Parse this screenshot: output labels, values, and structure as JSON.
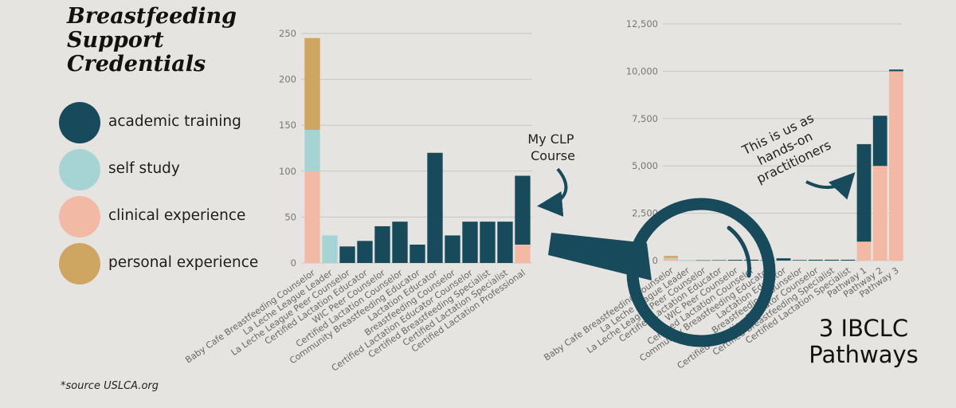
{
  "title_lines": [
    "Breastfeeding",
    "Support",
    "Credentials"
  ],
  "legend": [
    {
      "label": "academic training",
      "color": "#174b5c"
    },
    {
      "label": "self study",
      "color": "#a6d3d4"
    },
    {
      "label": "clinical experience",
      "color": "#f2b9a5"
    },
    {
      "label": "personal experience",
      "color": "#cfa562"
    }
  ],
  "source_note": "*source USLCA.org",
  "annotations": {
    "clp_lines": [
      "My CLP",
      "Course"
    ],
    "practitioners_lines": [
      "This is us as",
      "hands-on",
      "practitioners"
    ],
    "pathways_lines": [
      "3 IBCLC",
      "Pathways"
    ]
  },
  "chart_data": [
    {
      "type": "bar",
      "stacked": true,
      "title": "",
      "xlabel": "",
      "ylabel": "",
      "ylim": [
        0,
        250
      ],
      "yticks": [
        0,
        50,
        100,
        150,
        200,
        250
      ],
      "grid": true,
      "categories": [
        "Baby Cafe Breastfeeding Counselor",
        "La Leche League Leader",
        "La Leche League Peer Counselor",
        "Certified Lactation Educator",
        "WIC Peer Counselor",
        "Certified Lactation Counselor",
        "Community Breastfeeding Educator",
        "Lactation Educator",
        "Breastfeeding Counselor",
        "Certified Lactation Educator Counselor",
        "Certified Breastfeeding Specialist",
        "Certified Lactation Specialist",
        "Certified Lactation Professional"
      ],
      "series": [
        {
          "name": "clinical experience",
          "values": [
            100,
            0,
            0,
            0,
            0,
            0,
            0,
            0,
            0,
            0,
            0,
            0,
            20
          ]
        },
        {
          "name": "self study",
          "values": [
            45,
            30,
            0,
            0,
            0,
            0,
            0,
            0,
            0,
            0,
            0,
            0,
            0
          ]
        },
        {
          "name": "academic training",
          "values": [
            0,
            0,
            18,
            24,
            40,
            45,
            20,
            120,
            30,
            45,
            45,
            45,
            75
          ]
        },
        {
          "name": "personal experience",
          "values": [
            100,
            0,
            0,
            0,
            0,
            0,
            0,
            0,
            0,
            0,
            0,
            0,
            0
          ]
        }
      ]
    },
    {
      "type": "bar",
      "stacked": true,
      "title": "",
      "xlabel": "",
      "ylabel": "",
      "ylim": [
        0,
        12500
      ],
      "yticks": [
        "0",
        "2,500",
        "5,000",
        "7,500",
        "10,000",
        "12,500"
      ],
      "grid": true,
      "categories": [
        "Baby Cafe Breastfeeding Counselor",
        "La Leche League Leader",
        "La Leche League Peer Counselor",
        "Certified Lactation Educator",
        "WIC Peer Counselor",
        "Certified Lactation Counselor",
        "Community Breastfeeding Educator",
        "Lactation Educator",
        "Breastfeeding Counselor",
        "Certified Lactation Educator Counselor",
        "Certified Breastfeeding Specialist",
        "Certified Lactation Specialist",
        "Pathway 1",
        "Pathway 2",
        "Pathway 3"
      ],
      "series": [
        {
          "name": "clinical experience",
          "values": [
            100,
            0,
            0,
            0,
            0,
            0,
            0,
            0,
            0,
            0,
            0,
            0,
            1000,
            5000,
            10000
          ]
        },
        {
          "name": "self study",
          "values": [
            45,
            30,
            0,
            0,
            0,
            0,
            0,
            0,
            0,
            0,
            0,
            0,
            0,
            0,
            0
          ]
        },
        {
          "name": "academic training",
          "values": [
            0,
            0,
            18,
            24,
            40,
            45,
            20,
            120,
            30,
            45,
            45,
            45,
            5150,
            2650,
            90
          ]
        },
        {
          "name": "personal experience",
          "values": [
            100,
            0,
            0,
            0,
            0,
            0,
            0,
            0,
            0,
            0,
            0,
            0,
            0,
            0,
            0
          ]
        }
      ]
    }
  ]
}
